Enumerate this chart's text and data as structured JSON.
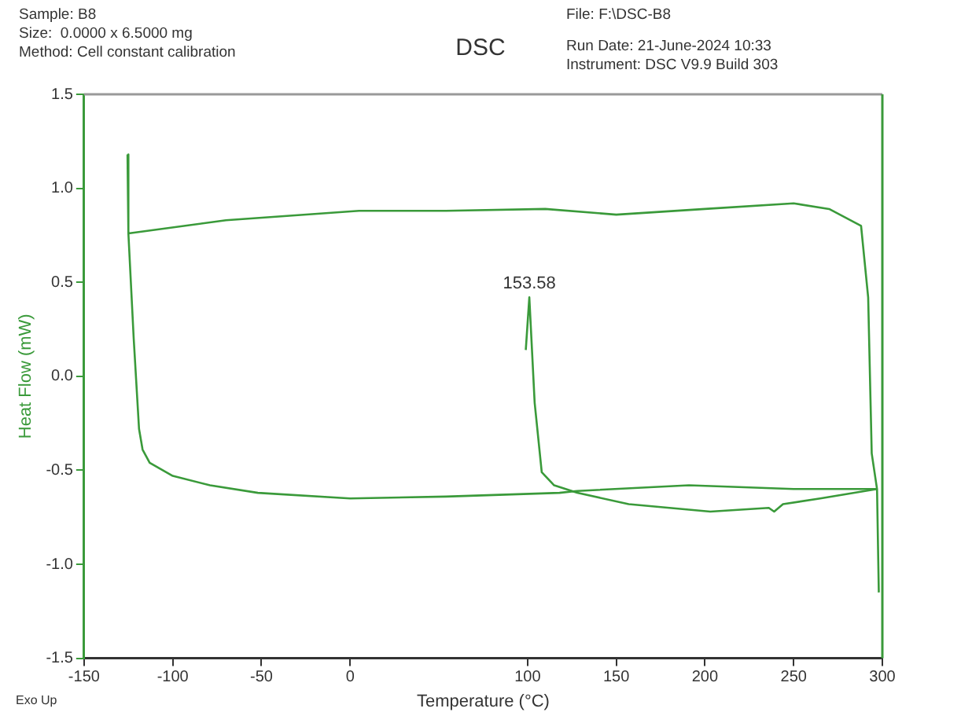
{
  "chart_data": {
    "type": "line",
    "title": "DSC",
    "xlabel": "Temperature (°C)",
    "ylabel": "Heat Flow (mW)",
    "annotations": [
      "Sample: B8",
      "Size:  0.0000 x 6.5000 mg",
      "Method: Cell constant calibration",
      "File: F:\\DSC-B8",
      "Run Date: 21-June-2024 10:33",
      "Instrument: DSC V9.9 Build 303",
      "Exo Up",
      {
        "text": "153.58",
        "x": 101,
        "y": 0.42
      }
    ],
    "series": [
      {
        "color": "#3a9a3a",
        "x": [
          -125.5,
          -125,
          -70,
          5,
          54,
          110,
          150,
          200,
          250,
          270,
          288,
          292,
          294,
          297,
          298
        ],
        "values": [
          1.18,
          0.76,
          0.83,
          0.88,
          0.88,
          0.89,
          0.86,
          0.89,
          0.92,
          0.89,
          0.8,
          0.42,
          -0.41,
          -0.6,
          -1.15
        ]
      },
      {
        "color": "#3a9a3a",
        "x": [
          297,
          250,
          191,
          128,
          118,
          54,
          0,
          -52,
          -79,
          -100,
          -113,
          -117,
          -119,
          -122,
          -125
        ],
        "values": [
          -0.6,
          -0.6,
          -0.58,
          -0.61,
          -0.62,
          -0.64,
          -0.65,
          -0.62,
          -0.58,
          -0.53,
          -0.46,
          -0.39,
          -0.28,
          0.2,
          0.76
        ]
      },
      {
        "color": "#3a9a3a",
        "x": [
          99,
          101,
          104,
          108,
          115,
          128,
          157,
          203,
          236,
          239,
          244,
          265,
          297
        ],
        "values": [
          0.14,
          0.42,
          -0.14,
          -0.51,
          -0.58,
          -0.62,
          -0.68,
          -0.72,
          -0.7,
          -0.72,
          -0.68,
          -0.65,
          -0.6
        ]
      }
    ],
    "xlim": [
      -150,
      300
    ],
    "xticks": [
      -150,
      -100,
      -50,
      0,
      100,
      150,
      200,
      250,
      300
    ],
    "ylim": [
      -1.5,
      1.5
    ],
    "yticks": [
      -1.5,
      {
        "value": -1,
        "label": "-1.0"
      },
      -0.5,
      {
        "value": 0,
        "label": "0.0"
      },
      0.5,
      {
        "value": 1,
        "label": "1.0"
      },
      1.5
    ],
    "grid": false,
    "legend": false,
    "marker": "none",
    "line_style": "solid"
  }
}
